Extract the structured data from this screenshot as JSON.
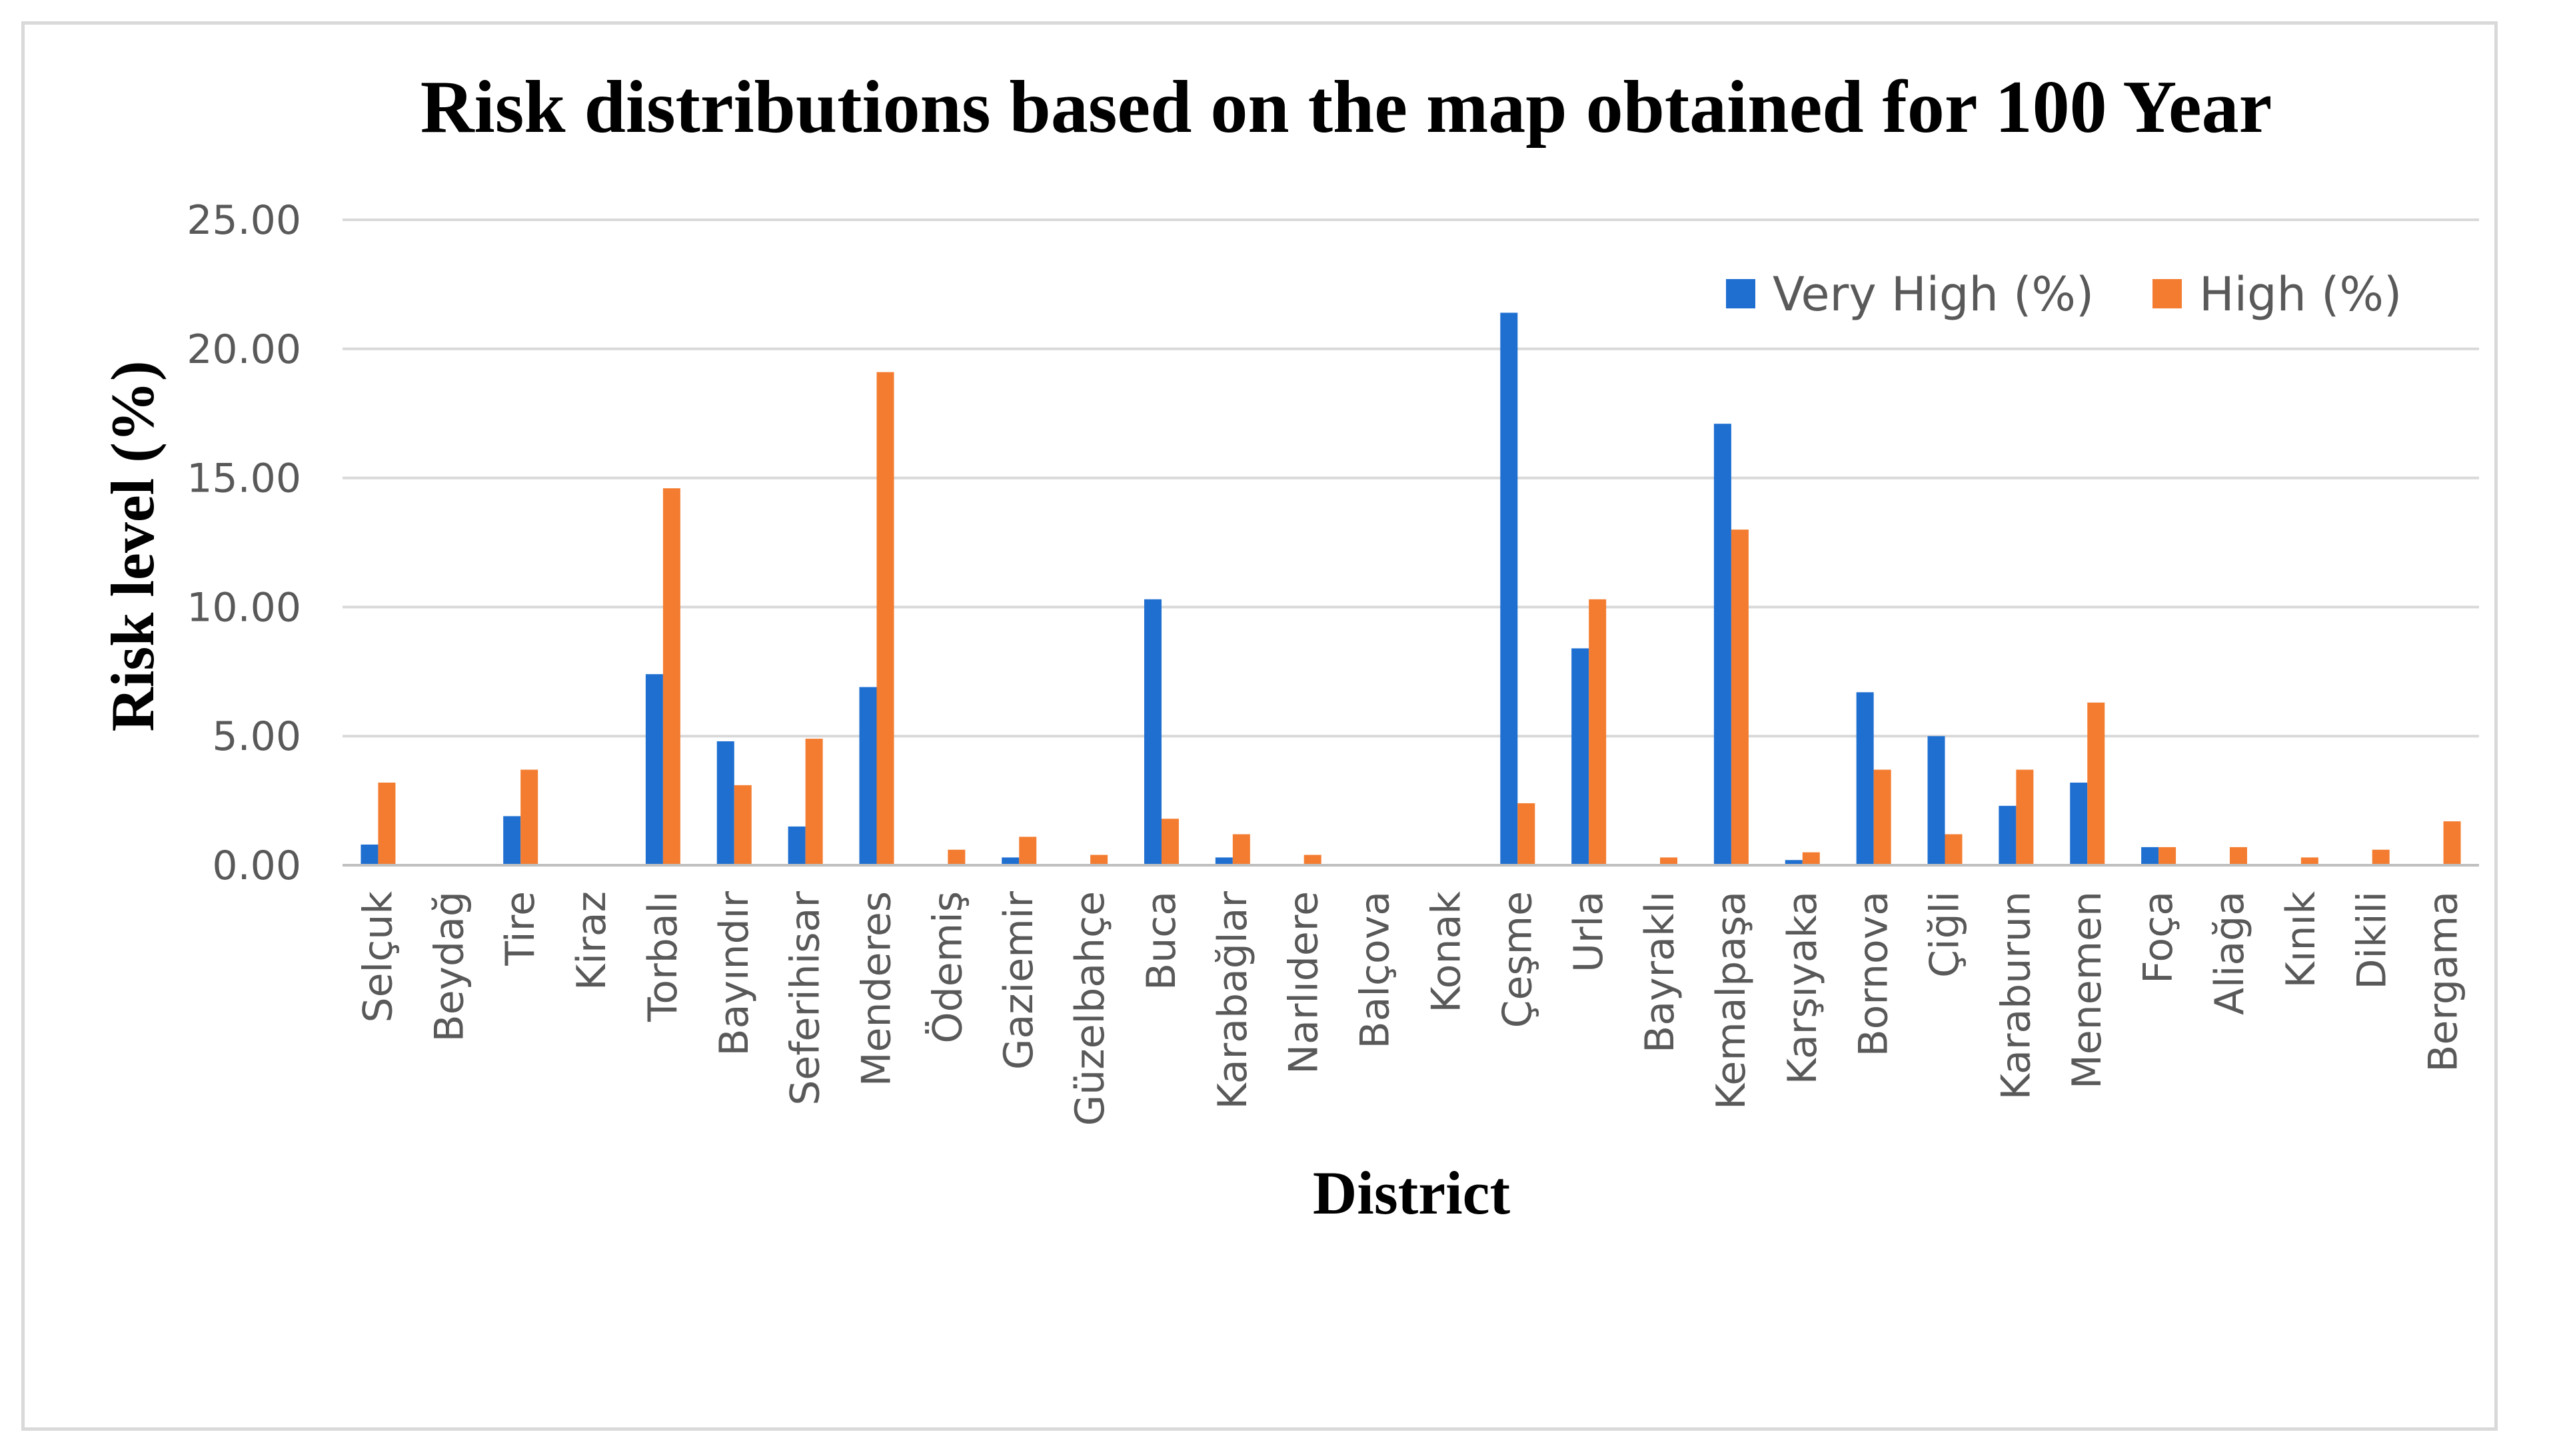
{
  "chart_data": {
    "type": "bar",
    "title": "Risk distributions based on the map obtained for 100 Year",
    "xlabel": "District",
    "ylabel": "Risk level (%)",
    "ylim": [
      0,
      25
    ],
    "yticks": [
      "0.00",
      "5.00",
      "10.00",
      "15.00",
      "20.00",
      "25.00"
    ],
    "grid": true,
    "legend_position": "top-right",
    "categories": [
      "Selçuk",
      "Beydağ",
      "Tire",
      "Kiraz",
      "Torbalı",
      "Bayındır",
      "Seferihisar",
      "Menderes",
      "Ödemiş",
      "Gaziemir",
      "Güzelbahçe",
      "Buca",
      "Karabağlar",
      "Narlıdere",
      "Balçova",
      "Konak",
      "Çeşme",
      "Urla",
      "Bayraklı",
      "Kemalpaşa",
      "Karşıyaka",
      "Bornova",
      "Çiğli",
      "Karaburun",
      "Menemen",
      "Foça",
      "Aliağa",
      "Kınık",
      "Dikili",
      "Bergama"
    ],
    "series": [
      {
        "name": "Very High (%)",
        "color": "#1f6fd1",
        "values": [
          0.8,
          0,
          1.9,
          0,
          7.4,
          4.8,
          1.5,
          6.9,
          0,
          0.3,
          0,
          10.3,
          0.3,
          0,
          0,
          0,
          21.4,
          8.4,
          0,
          17.1,
          0.2,
          6.7,
          5.0,
          2.3,
          3.2,
          0.7,
          0,
          0,
          0,
          0
        ]
      },
      {
        "name": "High (%)",
        "color": "#f47c30",
        "values": [
          3.2,
          0,
          3.7,
          0,
          14.6,
          3.1,
          4.9,
          19.1,
          0.6,
          1.1,
          0.4,
          1.8,
          1.2,
          0.4,
          0,
          0,
          2.4,
          10.3,
          0.3,
          13.0,
          0.5,
          3.7,
          1.2,
          3.7,
          6.3,
          0.7,
          0.7,
          0.3,
          0.6,
          1.7
        ]
      }
    ]
  }
}
